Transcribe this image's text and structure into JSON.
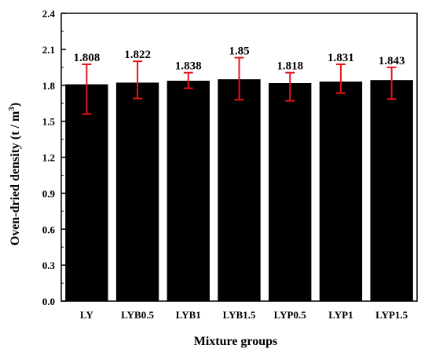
{
  "chart_data": {
    "type": "bar",
    "title": "",
    "xlabel": "Mixture groups",
    "ylabel": "Oven-dried density (t / m",
    "ylabel_superscript": "3",
    "ylabel_suffix": ")",
    "categories": [
      "LY",
      "LYB0.5",
      "LYB1",
      "LYB1.5",
      "LYP0.5",
      "LYP1",
      "LYP1.5"
    ],
    "values": [
      1.808,
      1.822,
      1.838,
      1.85,
      1.818,
      1.831,
      1.843
    ],
    "data_labels": [
      "1.808",
      "1.822",
      "1.838",
      "1.85",
      "1.818",
      "1.831",
      "1.843"
    ],
    "error_low": [
      1.56,
      1.69,
      1.775,
      1.68,
      1.67,
      1.735,
      1.685
    ],
    "error_high": [
      1.975,
      2.0,
      1.905,
      2.03,
      1.905,
      1.975,
      1.95
    ],
    "ylim": [
      0,
      2.4
    ],
    "yticks": [
      0.0,
      0.3,
      0.6,
      0.9,
      1.2,
      1.5,
      1.8,
      2.1,
      2.4
    ],
    "ytick_labels": [
      "0.0",
      "0.3",
      "0.6",
      "0.9",
      "1.2",
      "1.5",
      "1.8",
      "2.1",
      "2.4"
    ],
    "grid": false,
    "legend": "none",
    "colors": {
      "bar": "#000000",
      "error_bar": "#e8141b",
      "axis": "#000000"
    }
  }
}
